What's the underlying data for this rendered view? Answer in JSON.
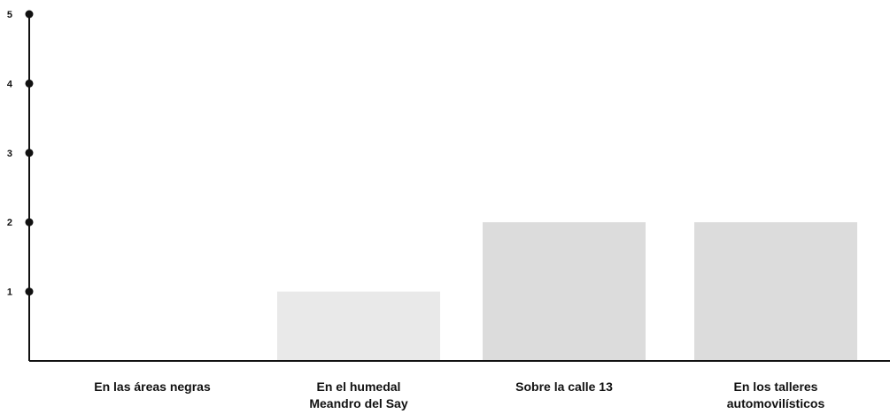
{
  "chart_data": {
    "type": "bar",
    "categories": [
      [
        "En las áreas negras"
      ],
      [
        "En el humedal",
        "Meandro del Say"
      ],
      [
        "Sobre la calle 13"
      ],
      [
        "En los talleres",
        "automovilísticos"
      ]
    ],
    "values": [
      0,
      1,
      2,
      2
    ],
    "ylim": [
      0,
      5
    ],
    "yticks": [
      "1",
      "2",
      "3",
      "4",
      "5"
    ],
    "title": "",
    "xlabel": "",
    "ylabel": "",
    "grid": false,
    "legend": "none",
    "colors": {
      "axis": "#111111",
      "bars": [
        "#e9e9e9",
        "#e9e9e9",
        "#dcdcdc",
        "#dcdcdc"
      ]
    }
  }
}
